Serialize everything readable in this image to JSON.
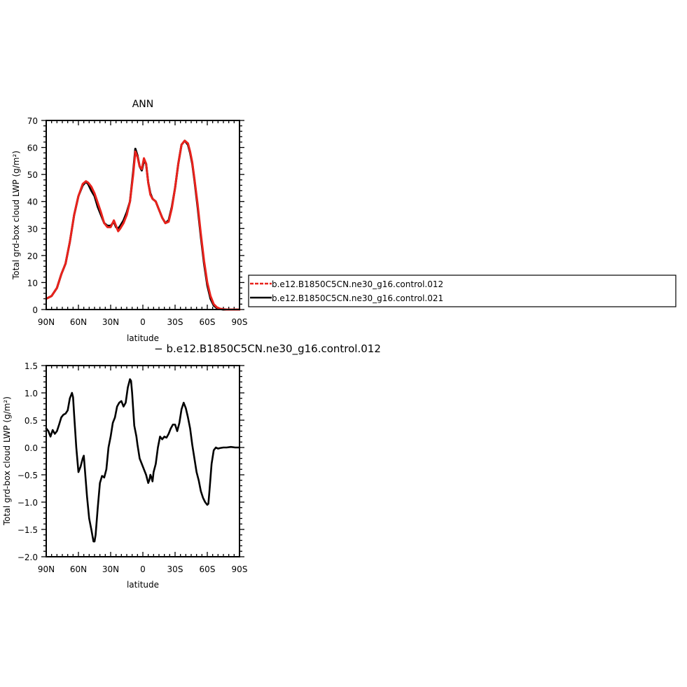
{
  "colors": {
    "control_012": "#e8221c",
    "control_021": "#000000",
    "diff": "#000000"
  },
  "legend": {
    "placement": "right",
    "entries": [
      {
        "label": "b.e12.B1850C5CN.ne30_g16.control.012",
        "color": "#e8221c",
        "style": "dashed"
      },
      {
        "label": "b.e12.B1850C5CN.ne30_g16.control.021",
        "color": "#000000",
        "style": "solid"
      }
    ]
  },
  "chart_data": [
    {
      "type": "line",
      "title": "ANN",
      "xlabel": "latitude",
      "ylabel": "Total grd-box cloud LWP (g/m²)",
      "xlim": [
        90,
        -90
      ],
      "ylim": [
        0,
        70
      ],
      "xticks": [
        90,
        60,
        30,
        0,
        -30,
        -60,
        -90
      ],
      "xtick_labels": [
        "90N",
        "60N",
        "30N",
        "0",
        "30S",
        "60S",
        "90S"
      ],
      "yticks": [
        0,
        10,
        20,
        30,
        40,
        50,
        60,
        70
      ],
      "ytick_labels": [
        "0",
        "10",
        "20",
        "30",
        "40",
        "50",
        "60",
        "70"
      ],
      "grid": false,
      "series": [
        {
          "name": "b.e12.B1850C5CN.ne30_g16.control.021",
          "color": "#000000",
          "x": [
            90,
            85,
            80,
            76,
            72,
            68,
            64,
            60,
            56,
            53,
            51,
            48,
            45,
            42,
            39,
            36,
            33,
            30,
            27,
            25,
            23,
            21,
            18,
            15,
            12,
            9,
            7,
            5,
            3,
            1,
            -1,
            -3,
            -5,
            -7,
            -9,
            -12,
            -15,
            -18,
            -21,
            -24,
            -27,
            -30,
            -33,
            -36,
            -39,
            -42,
            -44,
            -46,
            -48,
            -51,
            -54,
            -57,
            -60,
            -63,
            -66,
            -69,
            -72,
            -75,
            -78,
            -82,
            -86,
            -90
          ],
          "y": [
            4,
            5,
            8,
            13,
            17,
            25,
            35,
            42,
            46,
            47.3,
            46.5,
            44,
            42,
            38,
            35,
            32,
            31,
            31,
            32.5,
            30.5,
            30,
            31,
            33,
            36,
            40,
            51,
            59.5,
            57,
            53,
            51.5,
            55,
            54,
            47,
            43,
            41,
            40,
            37,
            34,
            32,
            33,
            38,
            45,
            54,
            61,
            62.5,
            61,
            58,
            54,
            48,
            38,
            27,
            17,
            9,
            4,
            1.5,
            0.5,
            0.2,
            0,
            0,
            0,
            0,
            0
          ]
        },
        {
          "name": "b.e12.B1850C5CN.ne30_g16.control.012",
          "color": "#e8221c",
          "x": [
            90,
            85,
            80,
            76,
            72,
            68,
            64,
            60,
            56,
            53,
            51,
            48,
            45,
            42,
            39,
            36,
            33,
            30,
            27,
            25,
            23,
            21,
            18,
            15,
            12,
            9,
            7,
            5,
            3,
            1,
            -1,
            -3,
            -5,
            -7,
            -9,
            -12,
            -15,
            -18,
            -21,
            -24,
            -27,
            -30,
            -33,
            -36,
            -39,
            -42,
            -44,
            -46,
            -48,
            -51,
            -54,
            -57,
            -60,
            -63,
            -66,
            -69,
            -72,
            -75,
            -78,
            -82,
            -86,
            -90
          ],
          "y": [
            4,
            5,
            8,
            13,
            17,
            25,
            35,
            42,
            46.5,
            47.5,
            47,
            45.5,
            43,
            39.5,
            36,
            32,
            30.5,
            30.5,
            33,
            31,
            29,
            30,
            32,
            35,
            40,
            50,
            58.5,
            56.5,
            53,
            52,
            56,
            54,
            47,
            42.5,
            41,
            40,
            37,
            34,
            32,
            32.5,
            37.5,
            45,
            54,
            61,
            62.5,
            61.5,
            58.5,
            54.5,
            48.5,
            39,
            28,
            18,
            10,
            5,
            2,
            0.8,
            0.3,
            0.1,
            0,
            0,
            0,
            0
          ]
        }
      ]
    },
    {
      "type": "line",
      "title": "− b.e12.B1850C5CN.ne30_g16.control.012",
      "xlabel": "latitude",
      "ylabel": "Total grd-box cloud LWP (g/m²)",
      "xlim": [
        90,
        -90
      ],
      "ylim": [
        -2.0,
        1.5
      ],
      "xticks": [
        90,
        60,
        30,
        0,
        -30,
        -60,
        -90
      ],
      "xtick_labels": [
        "90N",
        "60N",
        "30N",
        "0",
        "30S",
        "60S",
        "90S"
      ],
      "yticks": [
        1.5,
        1.0,
        0.5,
        0.0,
        -0.5,
        -1.0,
        -1.5,
        -2.0
      ],
      "ytick_labels": [
        "1.5",
        "1.0",
        "0.5",
        "0.0",
        "−0.5",
        "−1.0",
        "−1.5",
        "−2.0"
      ],
      "grid": false,
      "series": [
        {
          "color": "#000000",
          "x": [
            90,
            88,
            86,
            84,
            82,
            80,
            78,
            76,
            74,
            72,
            70,
            68,
            66,
            65,
            64,
            63,
            62,
            60,
            58,
            56,
            55,
            54,
            52,
            50,
            48,
            46,
            45,
            44,
            42,
            40,
            38,
            36,
            34,
            32,
            30,
            28,
            26,
            24,
            22,
            20,
            18,
            16,
            14,
            12,
            11,
            10,
            9,
            8,
            7,
            6,
            5,
            3,
            1,
            -1,
            -3,
            -5,
            -6,
            -7,
            -8,
            -9,
            -10,
            -12,
            -14,
            -16,
            -18,
            -20,
            -22,
            -24,
            -26,
            -28,
            -30,
            -32,
            -34,
            -36,
            -38,
            -40,
            -42,
            -44,
            -46,
            -48,
            -50,
            -52,
            -54,
            -56,
            -58,
            -60,
            -61,
            -62,
            -64,
            -66,
            -68,
            -70,
            -72,
            -75,
            -78,
            -82,
            -86,
            -90
          ],
          "y": [
            0.35,
            0.3,
            0.2,
            0.32,
            0.25,
            0.3,
            0.42,
            0.55,
            0.6,
            0.62,
            0.68,
            0.9,
            1.0,
            0.92,
            0.6,
            0.3,
            0.0,
            -0.45,
            -0.35,
            -0.2,
            -0.15,
            -0.4,
            -0.9,
            -1.3,
            -1.5,
            -1.72,
            -1.72,
            -1.6,
            -1.1,
            -0.65,
            -0.52,
            -0.55,
            -0.4,
            0.0,
            0.2,
            0.45,
            0.55,
            0.75,
            0.82,
            0.85,
            0.75,
            0.82,
            1.1,
            1.25,
            1.22,
            1.0,
            0.7,
            0.4,
            0.3,
            0.2,
            0.05,
            -0.2,
            -0.3,
            -0.4,
            -0.5,
            -0.65,
            -0.6,
            -0.5,
            -0.55,
            -0.62,
            -0.45,
            -0.3,
            0.0,
            0.2,
            0.15,
            0.2,
            0.18,
            0.25,
            0.35,
            0.42,
            0.42,
            0.3,
            0.45,
            0.7,
            0.82,
            0.72,
            0.55,
            0.35,
            0.05,
            -0.2,
            -0.45,
            -0.6,
            -0.8,
            -0.92,
            -1.0,
            -1.05,
            -1.03,
            -0.8,
            -0.3,
            -0.05,
            0.0,
            -0.02,
            -0.01,
            0.0,
            0.0,
            0.01,
            0.0,
            0.0
          ]
        }
      ]
    }
  ]
}
